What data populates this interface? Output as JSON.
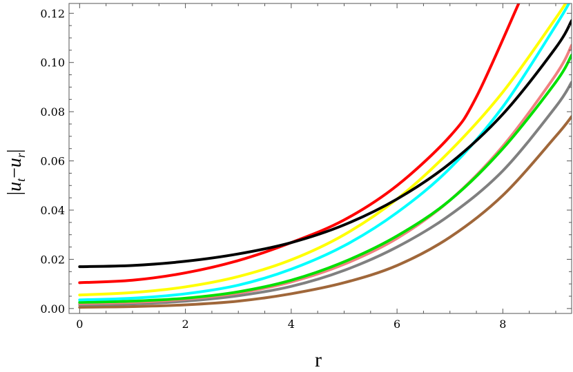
{
  "chart_data": {
    "type": "line",
    "xlabel": "r",
    "ylabel": "|u_t − u_r|",
    "ylabel_parts": {
      "bar_left": "|",
      "u1": "u",
      "sub1": "t",
      "minus": "−",
      "u2": "u",
      "sub2": "r",
      "bar_right": "|"
    },
    "xlim": [
      -0.2,
      9.3
    ],
    "ylim": [
      -0.002,
      0.124
    ],
    "x_ticks": [
      0,
      2,
      4,
      6,
      8
    ],
    "x_tick_labels": [
      "0",
      "2",
      "4",
      "6",
      "8"
    ],
    "y_ticks": [
      0.0,
      0.02,
      0.04,
      0.06,
      0.08,
      0.1,
      0.12
    ],
    "y_tick_labels": [
      "0.00",
      "0.02",
      "0.04",
      "0.06",
      "0.08",
      "0.10",
      "0.12"
    ],
    "grid": false,
    "frame": true,
    "series": [
      {
        "color": "#a0673a",
        "x": [
          0,
          1,
          2,
          3,
          4,
          5,
          6,
          7,
          8,
          9,
          9.3
        ],
        "y": [
          0.0005,
          0.0008,
          0.0015,
          0.003,
          0.006,
          0.0105,
          0.0175,
          0.029,
          0.046,
          0.07,
          0.078
        ]
      },
      {
        "color": "#808080",
        "x": [
          0,
          1,
          2,
          3,
          4,
          5,
          6,
          7,
          8,
          9,
          9.3
        ],
        "y": [
          0.0015,
          0.0019,
          0.003,
          0.0052,
          0.009,
          0.0155,
          0.025,
          0.038,
          0.056,
          0.082,
          0.092
        ]
      },
      {
        "color": "#f08080",
        "x": [
          0,
          1,
          2,
          3,
          4,
          5,
          6,
          7,
          8,
          9,
          9.3
        ],
        "y": [
          0.002,
          0.0025,
          0.0038,
          0.0063,
          0.0108,
          0.018,
          0.0285,
          0.044,
          0.066,
          0.095,
          0.107
        ]
      },
      {
        "color": "#00e000",
        "x": [
          0,
          1,
          2,
          3,
          4,
          5,
          6,
          7,
          8,
          9,
          9.3
        ],
        "y": [
          0.0025,
          0.003,
          0.0042,
          0.0068,
          0.0115,
          0.019,
          0.0295,
          0.044,
          0.065,
          0.092,
          0.103
        ]
      },
      {
        "color": "#00ffff",
        "x": [
          0,
          1,
          2,
          3,
          4,
          5,
          6,
          7,
          8,
          9,
          9.3
        ],
        "y": [
          0.0035,
          0.0042,
          0.006,
          0.0095,
          0.016,
          0.0255,
          0.039,
          0.057,
          0.082,
          0.115,
          0.126
        ]
      },
      {
        "color": "#ffff00",
        "x": [
          0,
          1,
          2,
          3,
          4,
          5,
          6,
          7,
          8,
          9,
          9.3
        ],
        "y": [
          0.0055,
          0.0065,
          0.0088,
          0.013,
          0.0198,
          0.03,
          0.0445,
          0.064,
          0.088,
          0.118,
          0.128
        ]
      },
      {
        "color": "#ff0000",
        "x": [
          0,
          1,
          2,
          3,
          4,
          5,
          6,
          7,
          7.5,
          8.3
        ],
        "y": [
          0.0105,
          0.0115,
          0.0145,
          0.0195,
          0.0268,
          0.036,
          0.05,
          0.07,
          0.086,
          0.124
        ]
      },
      {
        "color": "#000000",
        "x": [
          0,
          1,
          2,
          3,
          4,
          5,
          6,
          7,
          8,
          9,
          9.3
        ],
        "y": [
          0.017,
          0.0175,
          0.0192,
          0.0222,
          0.0268,
          0.034,
          0.0445,
          0.059,
          0.079,
          0.106,
          0.117
        ]
      }
    ]
  }
}
